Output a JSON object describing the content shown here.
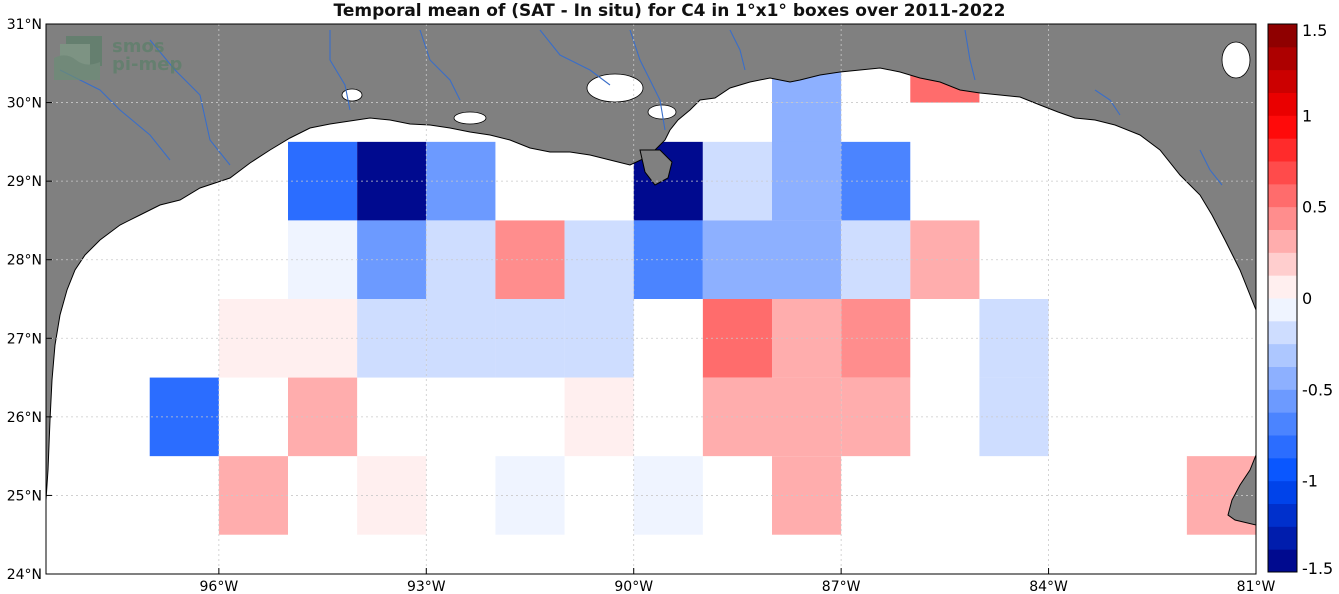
{
  "title": "Temporal mean of (SAT - In situ) for C4 in 1°x1° boxes over 2011-2022",
  "logo": {
    "line1": "smos",
    "line2": "pi-mep"
  },
  "map": {
    "lon_range": [
      -98.5,
      -81
    ],
    "lat_range": [
      24,
      31
    ],
    "x_ticks": [
      -96,
      -93,
      -90,
      -87,
      -84,
      -81
    ],
    "x_tick_labels": [
      "96°W",
      "93°W",
      "90°W",
      "87°W",
      "84°W",
      "81°W"
    ],
    "y_ticks": [
      24,
      25,
      26,
      27,
      28,
      29,
      30,
      31
    ],
    "y_tick_labels": [
      "24°N",
      "25°N",
      "26°N",
      "27°N",
      "28°N",
      "29°N",
      "30°N",
      "31°N"
    ],
    "colors": {
      "land": "#808080",
      "ocean": "#ffffff",
      "rivers": "#3a6ec8",
      "coast": "#000000",
      "grid": "#c9c9c9"
    }
  },
  "colorbar": {
    "range": [
      -1.5,
      1.5
    ],
    "tick_values": [
      1.5,
      1,
      0.5,
      0,
      -0.5,
      -1,
      -1.5
    ],
    "tick_labels": [
      "1.5",
      "1",
      "0.5",
      "0",
      "-0.5",
      "-1",
      "-1.5"
    ]
  },
  "chart_data": {
    "type": "heatmap",
    "title": "Temporal mean of (SAT - In situ) for C4 in 1°x1° boxes over 2011-2022",
    "cell_size_deg": 1,
    "value_range": [
      -1.5,
      1.5
    ],
    "cells": [
      {
        "lon_w": -88,
        "lat_s": 30,
        "value": -0.45
      },
      {
        "lon_w": -86,
        "lat_s": 30,
        "value": 0.5
      },
      {
        "lon_w": -88,
        "lat_s": 29,
        "value": -0.45
      },
      {
        "lon_w": -86,
        "lat_s": 30.5,
        "value": 0.6
      },
      {
        "lon_w": -95,
        "lat_s": 28.5,
        "value": -0.85
      },
      {
        "lon_w": -94,
        "lat_s": 28.5,
        "value": -1.45
      },
      {
        "lon_w": -93,
        "lat_s": 28.5,
        "value": -0.6
      },
      {
        "lon_w": -90,
        "lat_s": 28.5,
        "value": -1.5
      },
      {
        "lon_w": -89,
        "lat_s": 28.5,
        "value": -0.25
      },
      {
        "lon_w": -88,
        "lat_s": 28.5,
        "value": -0.5
      },
      {
        "lon_w": -87,
        "lat_s": 28.5,
        "value": -0.75
      },
      {
        "lon_w": -95,
        "lat_s": 27.5,
        "value": -0.1
      },
      {
        "lon_w": -94,
        "lat_s": 27.5,
        "value": -0.6
      },
      {
        "lon_w": -93,
        "lat_s": 27.5,
        "value": -0.25
      },
      {
        "lon_w": -92,
        "lat_s": 27.5,
        "value": 0.4
      },
      {
        "lon_w": -91,
        "lat_s": 27.5,
        "value": -0.25
      },
      {
        "lon_w": -90,
        "lat_s": 27.5,
        "value": -0.75
      },
      {
        "lon_w": -89,
        "lat_s": 27.5,
        "value": -0.5
      },
      {
        "lon_w": -88,
        "lat_s": 27.5,
        "value": -0.4
      },
      {
        "lon_w": -87,
        "lat_s": 27.5,
        "value": -0.25
      },
      {
        "lon_w": -86,
        "lat_s": 27.5,
        "value": 0.25
      },
      {
        "lon_w": -96,
        "lat_s": 26.5,
        "value": 0.1
      },
      {
        "lon_w": -95,
        "lat_s": 26.5,
        "value": 0.1
      },
      {
        "lon_w": -94,
        "lat_s": 26.5,
        "value": -0.15
      },
      {
        "lon_w": -93,
        "lat_s": 26.5,
        "value": -0.15
      },
      {
        "lon_w": -92,
        "lat_s": 26.5,
        "value": -0.25
      },
      {
        "lon_w": -91,
        "lat_s": 26.5,
        "value": -0.25
      },
      {
        "lon_w": -89,
        "lat_s": 26.5,
        "value": 0.55
      },
      {
        "lon_w": -88,
        "lat_s": 26.5,
        "value": 0.25
      },
      {
        "lon_w": -87,
        "lat_s": 26.5,
        "value": 0.45
      },
      {
        "lon_w": -85,
        "lat_s": 26.5,
        "value": -0.25
      },
      {
        "lon_w": -97,
        "lat_s": 25.5,
        "value": -0.85
      },
      {
        "lon_w": -95,
        "lat_s": 25.5,
        "value": 0.25
      },
      {
        "lon_w": -91,
        "lat_s": 25.5,
        "value": 0.1
      },
      {
        "lon_w": -89,
        "lat_s": 25.5,
        "value": 0.25
      },
      {
        "lon_w": -88,
        "lat_s": 25.5,
        "value": 0.25
      },
      {
        "lon_w": -87,
        "lat_s": 25.5,
        "value": 0.25
      },
      {
        "lon_w": -85,
        "lat_s": 25.5,
        "value": -0.25
      },
      {
        "lon_w": -96,
        "lat_s": 24.5,
        "value": 0.3
      },
      {
        "lon_w": -94,
        "lat_s": 24.5,
        "value": 0.1
      },
      {
        "lon_w": -92,
        "lat_s": 24.5,
        "value": -0.1
      },
      {
        "lon_w": -90,
        "lat_s": 24.5,
        "value": -0.1
      },
      {
        "lon_w": -88,
        "lat_s": 24.5,
        "value": 0.25
      },
      {
        "lon_w": -82,
        "lat_s": 24.5,
        "value": 0.25
      }
    ]
  }
}
